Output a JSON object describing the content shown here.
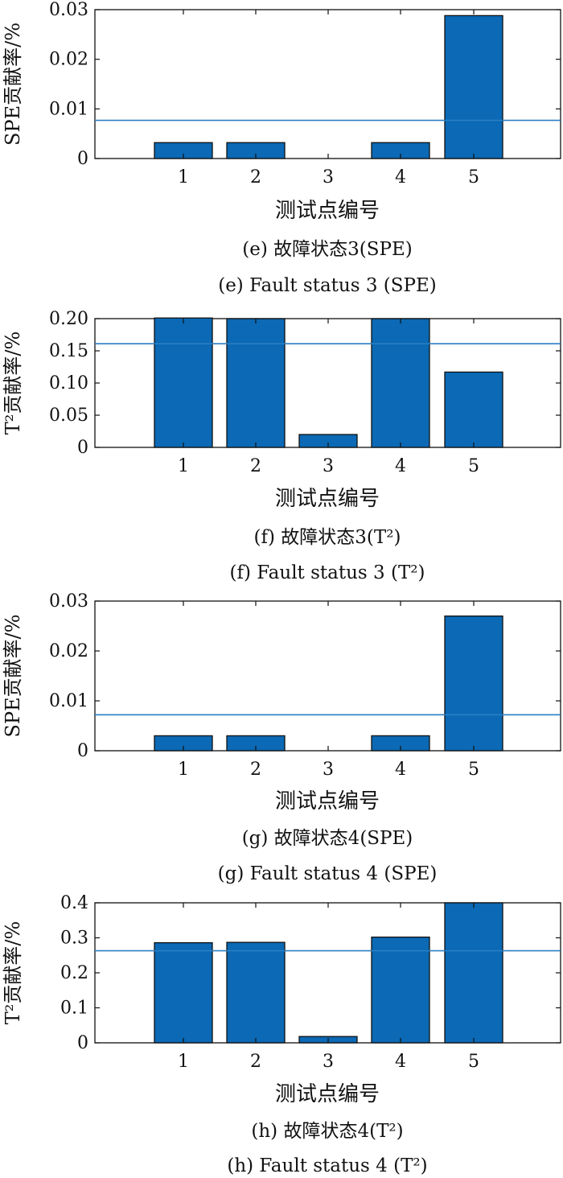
{
  "colors": {
    "bar": "#0b69b5",
    "bar_edge": "#111111",
    "threshold": "#2a7fc4",
    "axis": "#111111"
  },
  "chart_data": [
    {
      "type": "bar",
      "categories": [
        "1",
        "2",
        "3",
        "4",
        "5"
      ],
      "values": [
        0.0032,
        0.0032,
        0,
        0.0032,
        0.0288
      ],
      "threshold": 0.0077,
      "ylim": [
        0,
        0.03
      ],
      "yticks": [
        "0",
        "0.01",
        "0.02",
        "0.03"
      ],
      "ylabel": "SPE贡献率/%",
      "xlabel": "测试点编号",
      "caption_cn": "(e) 故障状态3(SPE)",
      "caption_en": "(e) Fault status 3 (SPE)"
    },
    {
      "type": "bar",
      "categories": [
        "1",
        "2",
        "3",
        "4",
        "5"
      ],
      "values": [
        0.201,
        0.2,
        0.02,
        0.2,
        0.117
      ],
      "threshold": 0.161,
      "ylim": [
        0,
        0.2
      ],
      "yticks": [
        "0",
        "0.05",
        "0.10",
        "0.15",
        "0.20"
      ],
      "ylabel": "T²贡献率/%",
      "xlabel": "测试点编号",
      "caption_cn": "(f) 故障状态3(T²)",
      "caption_en": "(f) Fault status 3 (T²)"
    },
    {
      "type": "bar",
      "categories": [
        "1",
        "2",
        "3",
        "4",
        "5"
      ],
      "values": [
        0.003,
        0.003,
        0,
        0.003,
        0.027
      ],
      "threshold": 0.0072,
      "ylim": [
        0,
        0.03
      ],
      "yticks": [
        "0",
        "0.01",
        "0.02",
        "0.03"
      ],
      "ylabel": "SPE贡献率/%",
      "xlabel": "测试点编号",
      "caption_cn": "(g) 故障状态4(SPE)",
      "caption_en": "(g) Fault status 4 (SPE)"
    },
    {
      "type": "bar",
      "categories": [
        "1",
        "2",
        "3",
        "4",
        "5"
      ],
      "values": [
        0.286,
        0.287,
        0.018,
        0.302,
        0.4
      ],
      "threshold": 0.263,
      "ylim": [
        0,
        0.4
      ],
      "yticks": [
        "0",
        "0.1",
        "0.2",
        "0.3",
        "0.4"
      ],
      "ylabel": "T²贡献率/%",
      "xlabel": "测试点编号",
      "caption_cn": "(h) 故障状态4(T²)",
      "caption_en": "(h) Fault status 4 (T²)"
    }
  ]
}
